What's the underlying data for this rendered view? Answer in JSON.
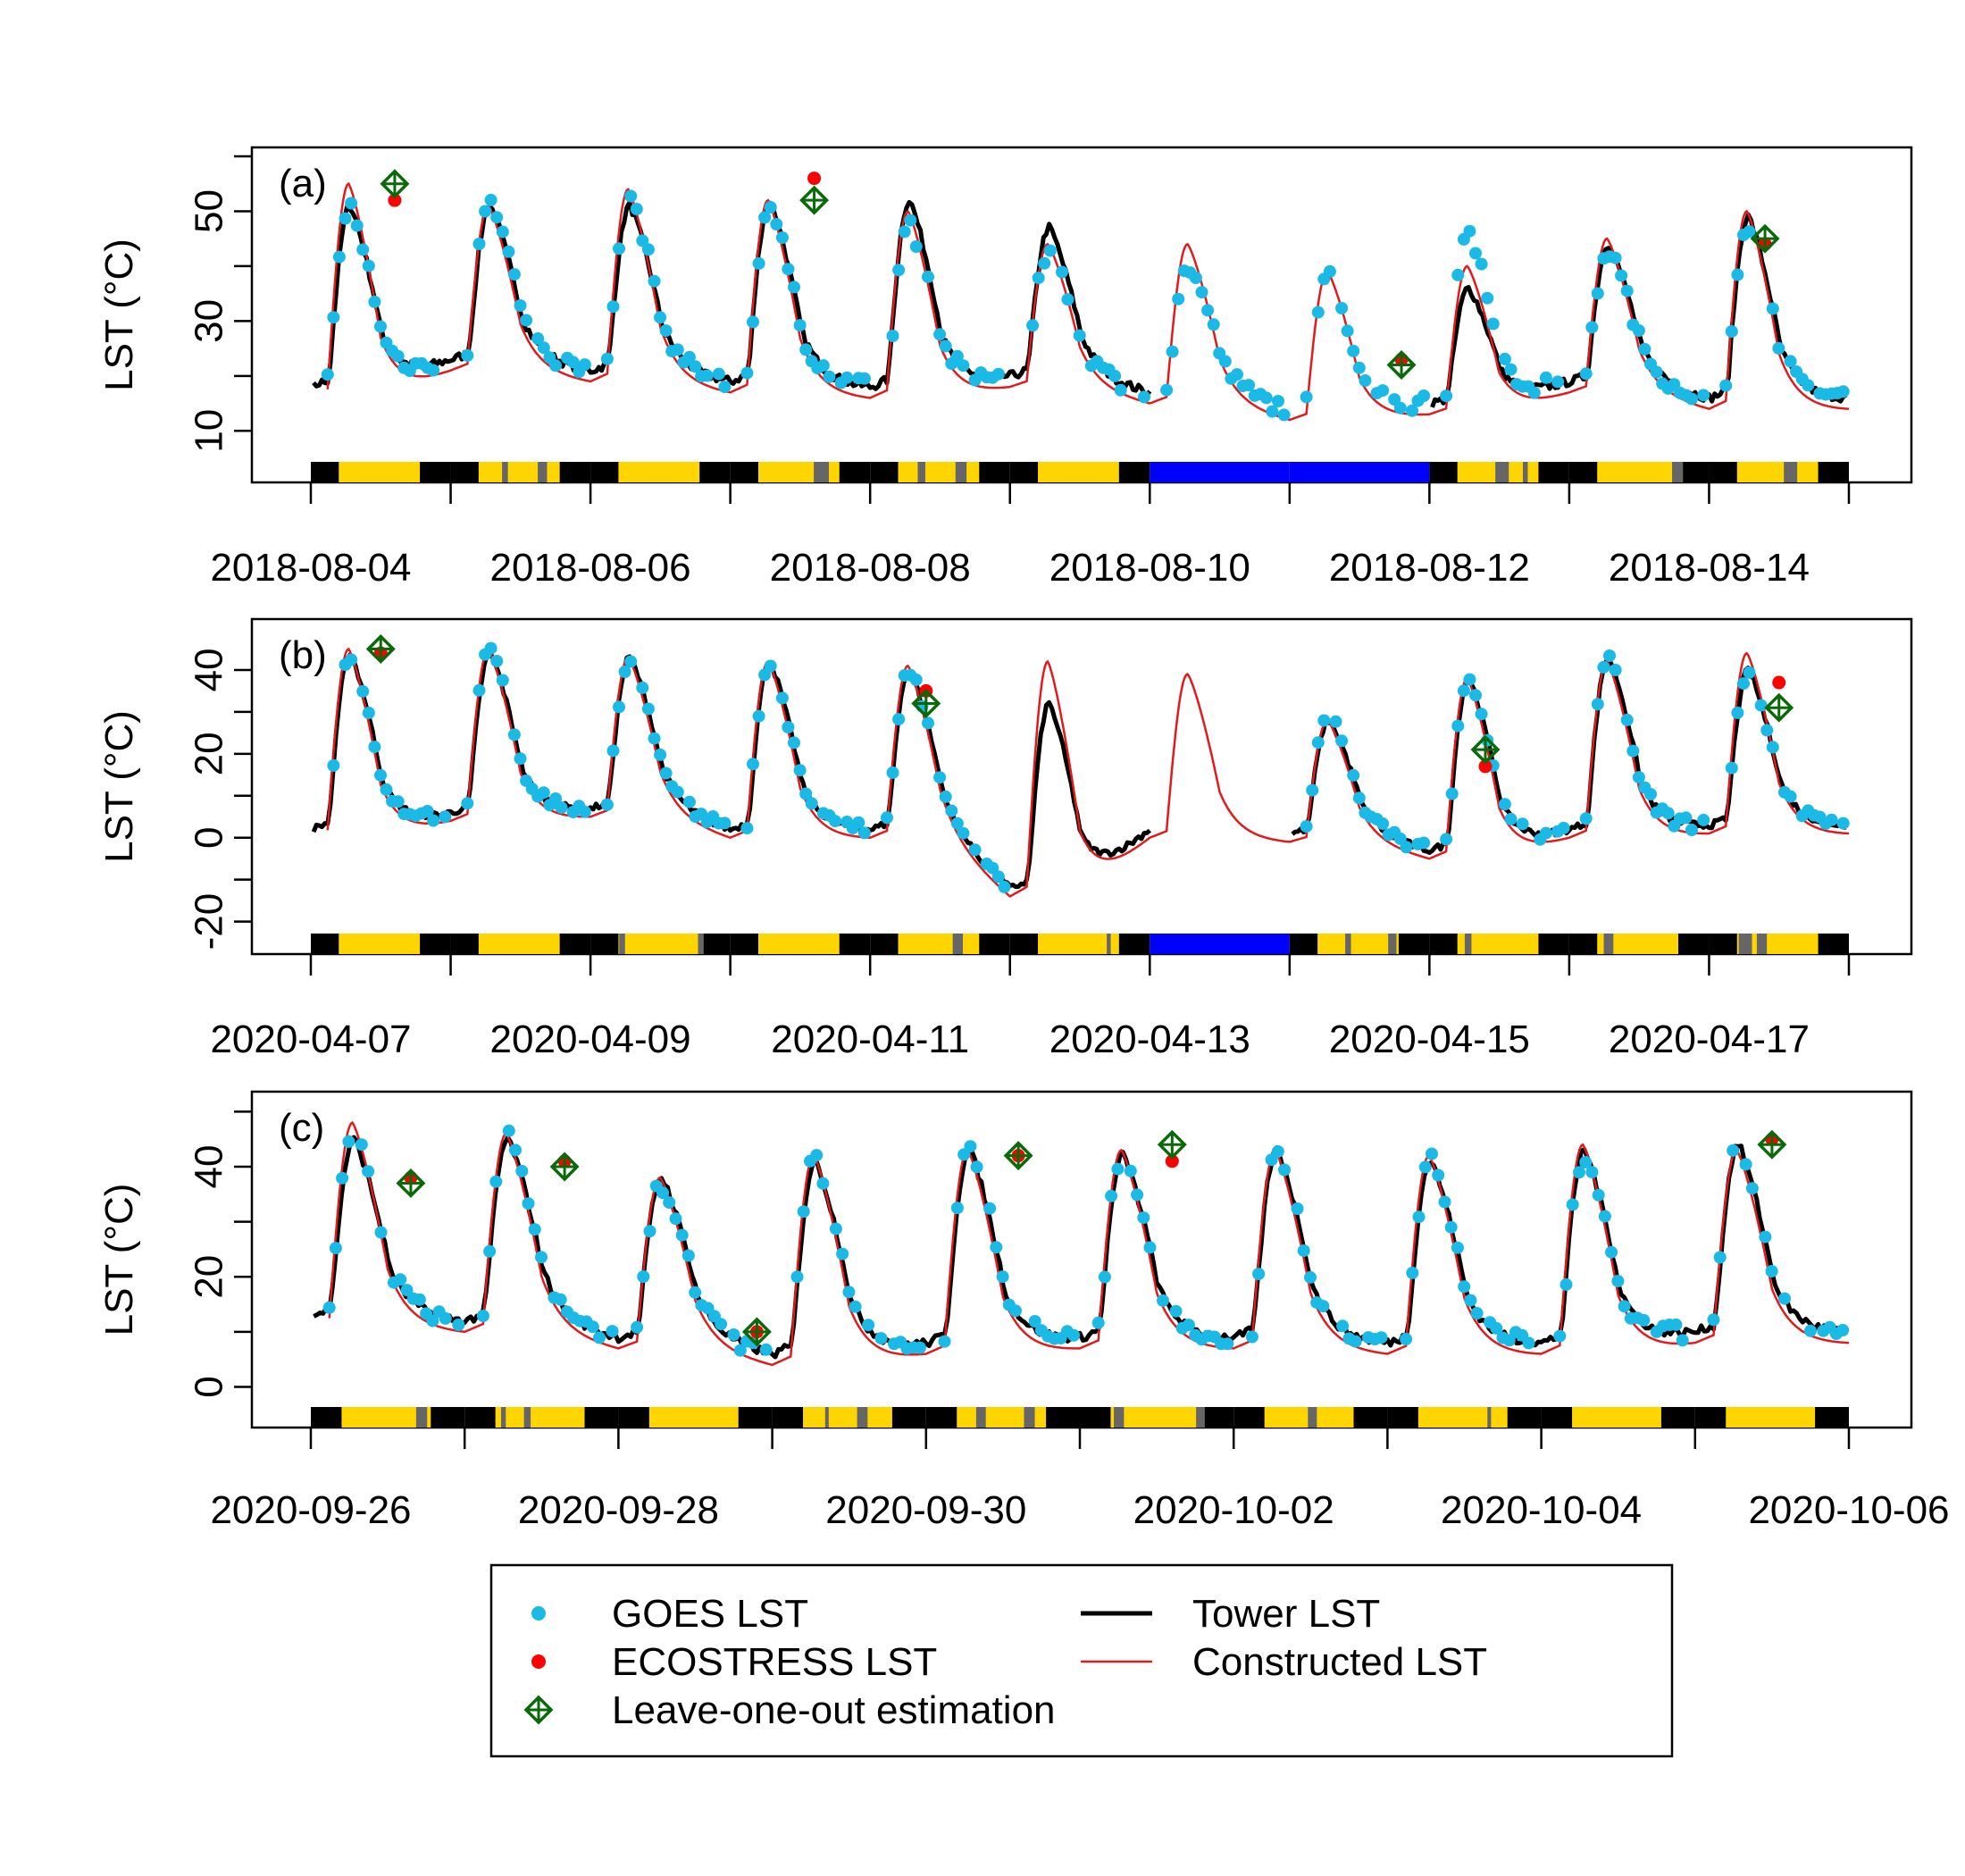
{
  "chart_data": [
    {
      "type": "line",
      "panel_label": "(a)",
      "ylabel": "LST (°C)",
      "ylim": [
        5,
        60
      ],
      "yticks": [
        10,
        30,
        50
      ],
      "yticks_minor": [
        20,
        40,
        60
      ],
      "xlim_days": 11,
      "xtick_labels": [
        "2018-08-04",
        "2018-08-06",
        "2018-08-08",
        "2018-08-10",
        "2018-08-12",
        "2018-08-14"
      ],
      "xtick_major_days": [
        0,
        2,
        4,
        6,
        8,
        10
      ],
      "daily_peaks": [
        55,
        51,
        54,
        52,
        50,
        44,
        44,
        39,
        40,
        45,
        50
      ],
      "daily_mins": [
        16,
        21,
        19,
        17,
        16,
        18,
        15,
        12,
        13,
        17,
        14
      ],
      "tower_peaks": [
        51,
        51,
        51,
        52,
        52,
        47,
        null,
        null,
        36,
        44,
        49
      ],
      "tower_gap_days": [
        [
          6,
          8
        ]
      ],
      "goes_peaks": [
        51,
        53,
        53,
        51,
        48,
        43,
        40,
        38,
        47,
        43,
        48
      ],
      "ecostress_points": [
        {
          "day": 0.6,
          "value": 52
        },
        {
          "day": 3.6,
          "value": 56
        },
        {
          "day": 7.8,
          "value": 23
        },
        {
          "day": 10.4,
          "value": 44
        }
      ],
      "loo_points": [
        {
          "day": 0.6,
          "value": 55
        },
        {
          "day": 3.6,
          "value": 52
        },
        {
          "day": 7.8,
          "value": 22
        },
        {
          "day": 10.4,
          "value": 45
        }
      ],
      "status_bar": {
        "gap_start": 6,
        "gap_end": 8,
        "gap_color": "#0000ff"
      }
    },
    {
      "type": "line",
      "panel_label": "(b)",
      "ylabel": "LST (°C)",
      "ylim": [
        -22,
        50
      ],
      "yticks": [
        -20,
        0,
        20,
        40
      ],
      "yticks_minor": [
        -10,
        10,
        30
      ],
      "xlim_days": 11,
      "xtick_labels": [
        "2020-04-07",
        "2020-04-09",
        "2020-04-11",
        "2020-04-13",
        "2020-04-15",
        "2020-04-17"
      ],
      "xtick_major_days": [
        0,
        2,
        4,
        6,
        8,
        10
      ],
      "daily_peaks": [
        45,
        45,
        43,
        42,
        41,
        42,
        39,
        28,
        38,
        42,
        44
      ],
      "daily_mins": [
        0,
        4,
        5,
        0,
        0,
        -14,
        0,
        -1,
        -5,
        0,
        1
      ],
      "tower_peaks": [
        44,
        44,
        43,
        42,
        40,
        32,
        null,
        28,
        38,
        43,
        40
      ],
      "tower_gap_days": [
        [
          6,
          7
        ]
      ],
      "goes_peaks": [
        44,
        45,
        43,
        42,
        40,
        null,
        null,
        30,
        38,
        43,
        40
      ],
      "ecostress_points": [
        {
          "day": 0.5,
          "value": 44
        },
        {
          "day": 4.4,
          "value": 35
        },
        {
          "day": 8.4,
          "value": 17
        },
        {
          "day": 10.5,
          "value": 37
        }
      ],
      "loo_points": [
        {
          "day": 0.5,
          "value": 45
        },
        {
          "day": 4.4,
          "value": 32
        },
        {
          "day": 8.4,
          "value": 21
        },
        {
          "day": 10.5,
          "value": 31
        }
      ],
      "status_bar": {
        "gap_start": 6,
        "gap_end": 7,
        "gap_color": "#0000ff"
      }
    },
    {
      "type": "line",
      "panel_label": "(c)",
      "ylabel": "LST (°C)",
      "ylim": [
        -3,
        52
      ],
      "yticks": [
        0,
        20,
        40
      ],
      "yticks_minor": [
        10,
        30,
        50
      ],
      "xlim_days": 10,
      "xtick_labels": [
        "2020-09-26",
        "2020-09-28",
        "2020-09-30",
        "2020-10-02",
        "2020-10-04",
        "2020-10-06"
      ],
      "xtick_major_days": [
        0,
        2,
        4,
        6,
        8,
        10
      ],
      "daily_peaks": [
        48,
        46,
        38,
        42,
        43,
        43,
        43,
        42,
        44,
        43
      ],
      "daily_mins": [
        11,
        10,
        7,
        4,
        6,
        7,
        7,
        6,
        6,
        8
      ],
      "tower_peaks": [
        45,
        45,
        38,
        41,
        43,
        42,
        43,
        41,
        43,
        44
      ],
      "tower_gap_days": [],
      "goes_peaks": [
        46,
        46,
        37,
        42,
        44,
        43,
        43,
        42,
        42,
        44
      ],
      "ecostress_points": [
        {
          "day": 0.65,
          "value": 38
        },
        {
          "day": 1.65,
          "value": 41
        },
        {
          "day": 2.9,
          "value": 10
        },
        {
          "day": 4.6,
          "value": 42
        },
        {
          "day": 5.6,
          "value": 41
        },
        {
          "day": 9.5,
          "value": 45
        }
      ],
      "loo_points": [
        {
          "day": 0.65,
          "value": 37
        },
        {
          "day": 1.65,
          "value": 40
        },
        {
          "day": 2.9,
          "value": 10
        },
        {
          "day": 4.6,
          "value": 42
        },
        {
          "day": 5.6,
          "value": 44
        },
        {
          "day": 9.5,
          "value": 44
        }
      ],
      "status_bar": {
        "gap_start": null,
        "gap_end": null,
        "gap_color": "#0000ff"
      }
    }
  ],
  "legend": {
    "items": [
      {
        "key": "goes",
        "label": "GOES LST",
        "color": "#1ab9e6"
      },
      {
        "key": "ecostress",
        "label": "ECOSTRESS LST",
        "color": "#ff0000"
      },
      {
        "key": "loo",
        "label": "Leave-one-out estimation",
        "color": "#0a6a0a"
      },
      {
        "key": "tower",
        "label": "Tower LST",
        "color": "#000000"
      },
      {
        "key": "constructed",
        "label": "Constructed LST",
        "color": "#e31a1c"
      }
    ]
  },
  "colors": {
    "goes": "#1ab9e6",
    "ecostress": "#ff0000",
    "loo": "#0a6a0a",
    "tower": "#000000",
    "constructed": "#e31a1c",
    "day_bar": "#ffd500",
    "night_bar": "#000000",
    "cloud_bar": "#666666",
    "gap_bar": "#0000ff"
  }
}
